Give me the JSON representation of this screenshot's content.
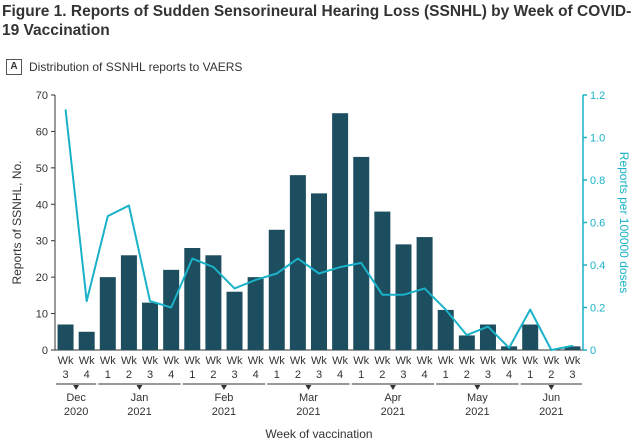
{
  "figure_title": "Figure 1.  Reports of Sudden Sensorineural Hearing Loss (SSNHL) by Week of COVID-19 Vaccination",
  "panel": {
    "letter": "A",
    "title": "Distribution of SSNHL reports to VAERS"
  },
  "colors": {
    "bar": "#1d4e5f",
    "line": "#1ab2c8",
    "text": "#333333"
  },
  "chart_data": {
    "type": "bar+line",
    "xlabel": "Week of vaccination",
    "ylabel": "Reports of SSNHL, No.",
    "y2label": "Reports per 100000 doses",
    "ylim": [
      0,
      70
    ],
    "yticks": [
      0,
      10,
      20,
      30,
      40,
      50,
      60,
      70
    ],
    "y2lim": [
      0,
      1.2
    ],
    "y2ticks": [
      "0",
      "0.2",
      "0.4",
      "0.6",
      "0.8",
      "1.0",
      "1.2"
    ],
    "categories": [
      [
        "Wk",
        "3"
      ],
      [
        "Wk",
        "4"
      ],
      [
        "Wk",
        "1"
      ],
      [
        "Wk",
        "2"
      ],
      [
        "Wk",
        "3"
      ],
      [
        "Wk",
        "4"
      ],
      [
        "Wk",
        "1"
      ],
      [
        "Wk",
        "2"
      ],
      [
        "Wk",
        "3"
      ],
      [
        "Wk",
        "4"
      ],
      [
        "Wk",
        "1"
      ],
      [
        "Wk",
        "2"
      ],
      [
        "Wk",
        "3"
      ],
      [
        "Wk",
        "4"
      ],
      [
        "Wk",
        "1"
      ],
      [
        "Wk",
        "2"
      ],
      [
        "Wk",
        "3"
      ],
      [
        "Wk",
        "4"
      ],
      [
        "Wk",
        "1"
      ],
      [
        "Wk",
        "2"
      ],
      [
        "Wk",
        "3"
      ],
      [
        "Wk",
        "4"
      ],
      [
        "Wk",
        "1"
      ],
      [
        "Wk",
        "2"
      ],
      [
        "Wk",
        "3"
      ]
    ],
    "months": [
      {
        "name": "Dec",
        "year": "2020",
        "start": 0,
        "end": 1
      },
      {
        "name": "Jan",
        "year": "2021",
        "start": 2,
        "end": 5
      },
      {
        "name": "Feb",
        "year": "2021",
        "start": 6,
        "end": 9
      },
      {
        "name": "Mar",
        "year": "2021",
        "start": 10,
        "end": 13
      },
      {
        "name": "Apr",
        "year": "2021",
        "start": 14,
        "end": 17
      },
      {
        "name": "May",
        "year": "2021",
        "start": 18,
        "end": 21
      },
      {
        "name": "Jun",
        "year": "2021",
        "start": 22,
        "end": 24
      }
    ],
    "series": [
      {
        "type": "bar",
        "axis": "left",
        "values": [
          7,
          5,
          20,
          26,
          13,
          22,
          28,
          26,
          16,
          20,
          33,
          48,
          43,
          65,
          53,
          38,
          29,
          31,
          11,
          4,
          7,
          1,
          7,
          0,
          1
        ]
      },
      {
        "type": "line",
        "axis": "right",
        "values": [
          1.13,
          0.23,
          0.63,
          0.68,
          0.23,
          0.2,
          0.43,
          0.39,
          0.29,
          0.33,
          0.36,
          0.43,
          0.36,
          0.39,
          0.41,
          0.26,
          0.26,
          0.29,
          0.19,
          0.07,
          0.11,
          0.01,
          0.19,
          0.0,
          0.02
        ]
      }
    ]
  }
}
